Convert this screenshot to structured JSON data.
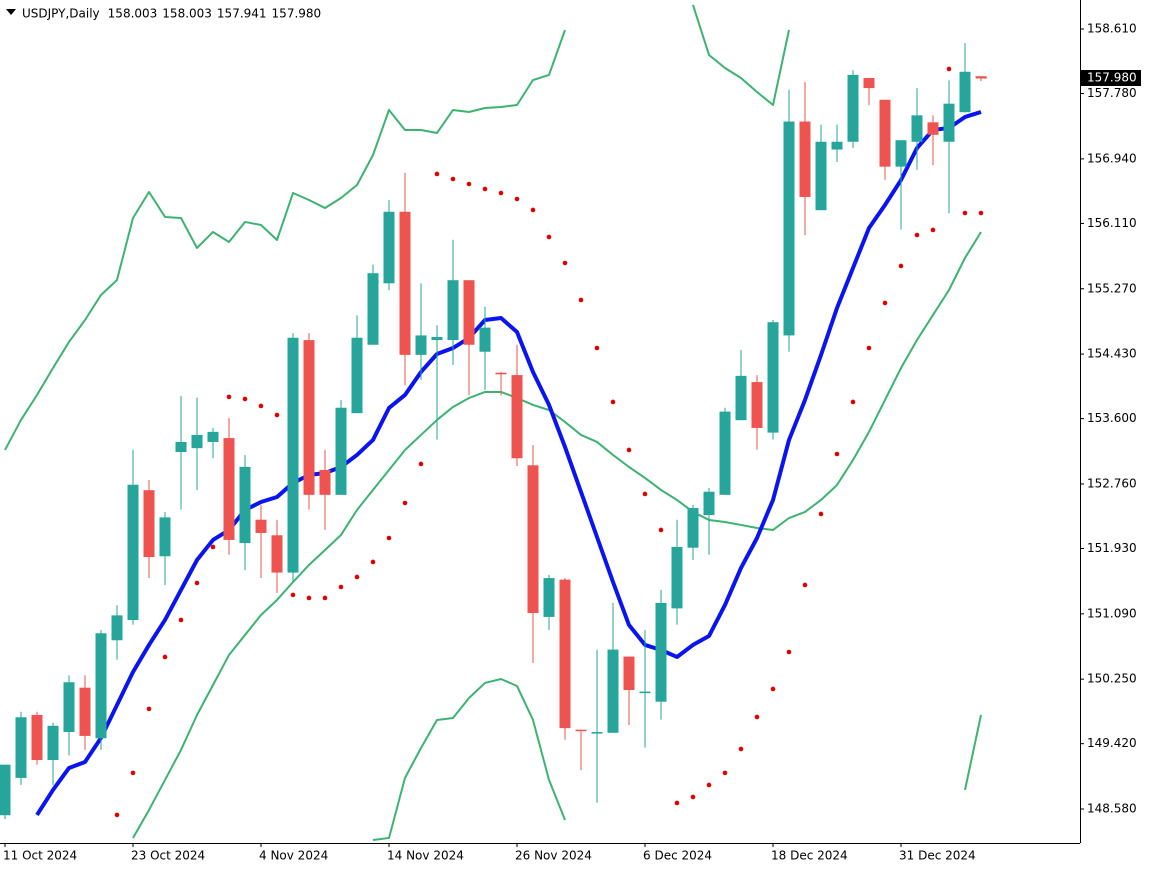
{
  "chart_data": {
    "type": "candlestick",
    "title": "USDJPY,Daily",
    "header_labels": [
      "158.003",
      "158.003",
      "157.941",
      "157.980"
    ],
    "categories": [
      "11 Oct 2024",
      null,
      null,
      null,
      null,
      null,
      null,
      null,
      "23 Oct 2024",
      null,
      null,
      null,
      null,
      null,
      null,
      null,
      "4 Nov 2024",
      null,
      null,
      null,
      null,
      null,
      null,
      null,
      "14 Nov 2024",
      null,
      null,
      null,
      null,
      null,
      null,
      null,
      "26 Nov 2024",
      null,
      null,
      null,
      null,
      null,
      null,
      null,
      "6 Dec 2024",
      null,
      null,
      null,
      null,
      null,
      null,
      null,
      "18 Dec 2024",
      null,
      null,
      null,
      null,
      null,
      null,
      null,
      "31 Dec 2024",
      null,
      null,
      null,
      null,
      null
    ],
    "open": [
      148.5,
      148.98,
      149.79,
      149.21,
      149.57,
      150.14,
      149.49,
      150.75,
      151.01,
      152.68,
      151.83,
      153.17,
      153.22,
      153.3,
      153.35,
      152.0,
      152.3,
      152.1,
      151.62,
      154.61,
      152.94,
      152.62,
      153.67,
      154.55,
      155.34,
      156.26,
      154.42,
      154.61,
      154.61,
      155.38,
      154.46,
      154.19,
      154.16,
      153.0,
      151.05,
      151.53,
      149.6,
      149.55,
      149.56,
      150.54,
      150.07,
      149.96,
      151.16,
      151.94,
      152.36,
      152.62,
      153.58,
      154.07,
      153.42,
      154.67,
      157.42,
      156.28,
      157.06,
      157.16,
      157.98,
      157.7,
      156.84,
      157.16,
      157.41,
      157.16,
      157.54,
      158.003
    ],
    "high": [
      149.15,
      149.83,
      149.83,
      149.69,
      150.3,
      150.3,
      150.88,
      151.2,
      153.2,
      152.81,
      152.4,
      153.89,
      153.87,
      153.48,
      153.61,
      153.13,
      152.49,
      152.3,
      154.7,
      154.7,
      153.2,
      153.84,
      154.93,
      155.58,
      156.41,
      156.76,
      155.34,
      154.8,
      155.9,
      155.38,
      155.04,
      154.2,
      154.55,
      153.26,
      151.59,
      151.55,
      149.6,
      150.63,
      151.23,
      150.54,
      150.88,
      151.4,
      152.3,
      152.49,
      152.71,
      153.74,
      154.48,
      154.16,
      154.87,
      157.83,
      157.93,
      157.38,
      157.38,
      158.08,
      157.98,
      157.7,
      157.18,
      157.85,
      157.5,
      157.95,
      158.43,
      158.003
    ],
    "low": [
      148.45,
      148.89,
      149.15,
      148.89,
      149.27,
      149.34,
      149.34,
      150.5,
      150.95,
      151.55,
      151.46,
      152.43,
      152.68,
      153.09,
      151.85,
      151.65,
      151.55,
      151.36,
      151.49,
      152.43,
      152.17,
      152.62,
      153.67,
      154.55,
      155.25,
      154.03,
      154.1,
      153.33,
      154.29,
      153.9,
      153.97,
      153.9,
      152.99,
      150.46,
      150.88,
      149.47,
      149.08,
      148.66,
      149.56,
      149.66,
      149.37,
      149.73,
      150.95,
      151.78,
      151.85,
      152.62,
      153.58,
      153.2,
      153.33,
      154.46,
      155.96,
      156.28,
      156.9,
      157.08,
      157.63,
      156.67,
      156.03,
      156.8,
      156.86,
      156.24,
      157.54,
      157.941
    ],
    "close": [
      149.15,
      149.76,
      149.21,
      149.65,
      150.21,
      149.52,
      150.84,
      151.07,
      152.75,
      151.82,
      152.33,
      153.3,
      153.39,
      153.43,
      152.04,
      152.98,
      152.13,
      151.62,
      154.64,
      152.62,
      152.62,
      153.74,
      154.64,
      155.47,
      156.26,
      154.42,
      154.67,
      154.65,
      155.38,
      154.55,
      154.77,
      154.17,
      153.09,
      151.1,
      151.55,
      149.62,
      149.59,
      149.57,
      150.63,
      150.11,
      150.09,
      151.23,
      151.95,
      152.45,
      152.66,
      153.69,
      154.15,
      153.48,
      154.84,
      157.42,
      156.45,
      157.16,
      157.16,
      158.02,
      157.85,
      156.84,
      157.18,
      157.5,
      157.25,
      157.65,
      158.06,
      157.98
    ],
    "up_color": "#26a69a",
    "down_color": "#ef5350",
    "ylim": [
      148.143,
      158.983
    ],
    "yticks": [
      {
        "value": 158.61,
        "label": "158.610"
      },
      {
        "value": 157.78,
        "label": "157.780"
      },
      {
        "value": 156.94,
        "label": "156.940"
      },
      {
        "value": 156.11,
        "label": "156.110"
      },
      {
        "value": 155.27,
        "label": "155.270"
      },
      {
        "value": 154.43,
        "label": "154.430"
      },
      {
        "value": 153.6,
        "label": "153.600"
      },
      {
        "value": 152.76,
        "label": "152.760"
      },
      {
        "value": 151.93,
        "label": "151.930"
      },
      {
        "value": 151.09,
        "label": "151.090"
      },
      {
        "value": 150.25,
        "label": "150.250"
      },
      {
        "value": 149.42,
        "label": "149.420"
      },
      {
        "value": 148.58,
        "label": "148.580"
      }
    ],
    "last_price": {
      "value": 157.98,
      "label": "157.980"
    },
    "lines": [
      {
        "color": "#3cb371",
        "width": 2,
        "values": [
          153.197,
          153.583,
          153.904,
          154.251,
          154.586,
          154.868,
          155.19,
          155.383,
          156.18,
          156.514,
          156.193,
          156.18,
          155.794,
          156.0,
          155.871,
          156.129,
          156.09,
          155.897,
          156.501,
          156.411,
          156.308,
          156.437,
          156.604,
          156.99,
          157.569,
          157.311,
          157.311,
          157.273,
          157.569,
          157.543,
          157.594,
          157.607,
          157.633,
          157.954,
          158.019,
          158.597,
          null,
          null,
          null,
          null,
          null,
          null,
          null,
          158.919,
          158.276,
          158.109,
          157.98,
          157.8,
          157.633,
          158.597,
          null,
          null,
          null,
          null,
          null,
          null,
          null,
          null,
          null,
          null,
          null,
          null
        ]
      },
      {
        "color": "#3cb371",
        "width": 2,
        "values": [
          null,
          null,
          null,
          null,
          null,
          null,
          null,
          null,
          148.208,
          148.568,
          148.954,
          149.34,
          149.789,
          150.175,
          150.561,
          150.818,
          151.075,
          151.268,
          151.499,
          151.718,
          151.911,
          152.104,
          152.425,
          152.683,
          152.94,
          153.197,
          153.39,
          153.583,
          153.75,
          153.865,
          153.943,
          153.943,
          153.865,
          153.776,
          153.711,
          153.557,
          153.39,
          153.3,
          153.133,
          152.978,
          152.837,
          152.683,
          152.554,
          152.4,
          152.297,
          152.271,
          152.233,
          152.194,
          152.168,
          152.322,
          152.4,
          152.554,
          152.747,
          153.068,
          153.429,
          153.84,
          154.251,
          154.611,
          154.933,
          155.254,
          155.666,
          156.0
        ]
      },
      {
        "color": "#3cb371",
        "width": 2,
        "values": [
          null,
          null,
          null,
          null,
          null,
          null,
          null,
          null,
          null,
          null,
          null,
          null,
          null,
          null,
          null,
          null,
          null,
          null,
          null,
          null,
          null,
          null,
          null,
          148.182,
          148.208,
          148.98,
          149.365,
          149.725,
          149.751,
          150.008,
          150.201,
          150.252,
          150.162,
          149.725,
          148.954,
          148.439,
          null,
          null,
          null,
          null,
          null,
          null,
          null,
          null,
          null,
          null,
          null,
          null,
          null,
          null,
          null,
          null,
          null,
          null,
          null,
          null,
          null,
          null,
          null,
          null,
          148.825,
          149.789
        ]
      },
      {
        "color": "#0a14f0",
        "width": 4,
        "values": [
          null,
          null,
          148.504,
          148.825,
          149.108,
          149.185,
          149.494,
          149.918,
          150.342,
          150.69,
          151.011,
          151.397,
          151.782,
          152.04,
          152.168,
          152.425,
          152.528,
          152.592,
          152.773,
          152.875,
          152.901,
          152.978,
          153.133,
          153.326,
          153.737,
          153.904,
          154.2,
          154.431,
          154.508,
          154.637,
          154.868,
          154.894,
          154.714,
          154.2,
          153.776,
          153.235,
          152.657,
          152.078,
          151.499,
          150.946,
          150.69,
          150.625,
          150.535,
          150.69,
          150.805,
          151.204,
          151.68,
          152.065,
          152.554,
          153.326,
          153.84,
          154.418,
          155.023,
          155.537,
          156.051,
          156.347,
          156.668,
          157.08,
          157.312,
          157.337,
          157.479,
          157.543
        ]
      }
    ],
    "dots": {
      "color": "#e00000",
      "values": [
        null,
        null,
        null,
        null,
        null,
        null,
        null,
        148.504,
        149.044,
        149.867,
        150.535,
        151.011,
        151.487,
        151.95,
        153.879,
        153.853,
        153.763,
        153.647,
        151.333,
        151.294,
        151.294,
        151.435,
        151.564,
        151.757,
        152.065,
        152.515,
        153.017,
        156.746,
        156.681,
        156.617,
        156.553,
        156.501,
        156.424,
        156.283,
        155.936,
        155.601,
        155.126,
        154.508,
        153.814,
        153.197,
        152.631,
        152.168,
        148.658,
        148.735,
        148.889,
        149.044,
        149.352,
        149.764,
        150.124,
        150.599,
        151.461,
        152.374,
        153.145,
        153.814,
        154.508,
        155.087,
        155.563,
        155.961,
        156.026,
        158.096,
        156.244,
        156.244
      ]
    }
  }
}
